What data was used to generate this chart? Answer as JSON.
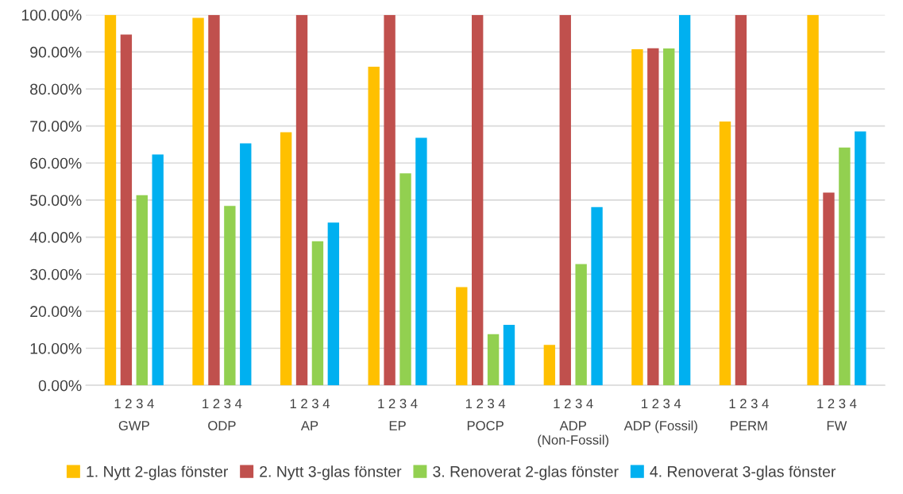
{
  "chart_data": {
    "type": "bar",
    "categories": [
      "GWP",
      "ODP",
      "AP",
      "EP",
      "POCP",
      "ADP (Non-Fossil)",
      "ADP (Fossil)",
      "PERM",
      "FW"
    ],
    "series": [
      {
        "name": "1. Nytt 2-glas fönster",
        "color": "#ffc000",
        "values": [
          100,
          99.2,
          68.3,
          86.0,
          26.5,
          10.9,
          90.7,
          71.2,
          100
        ]
      },
      {
        "name": "2. Nytt 3-glas fönster",
        "color": "#c0504d",
        "values": [
          94.7,
          100,
          100,
          100,
          100,
          100,
          91.0,
          100,
          52.0
        ]
      },
      {
        "name": "3. Renoverat 2-glas fönster",
        "color": "#92d050",
        "values": [
          51.3,
          48.4,
          38.9,
          57.2,
          13.8,
          32.7,
          90.9,
          null,
          64.2
        ]
      },
      {
        "name": "4. Renoverat 3-glas fönster",
        "color": "#00b0f0",
        "values": [
          62.3,
          65.3,
          43.9,
          66.8,
          16.3,
          48.1,
          100,
          null,
          68.5
        ]
      }
    ],
    "annotations": [
      "1 2 3 4",
      "1 2 3 4",
      "1 2 3 4",
      "1 2 3 4",
      "1 2 3 4",
      "1 2 3 4",
      "1 2 3 4",
      "1 2 3 4",
      "1 2 3 4"
    ],
    "ylim": [
      0,
      100
    ],
    "yticks": [
      {
        "value": 0,
        "label": "0.00%"
      },
      {
        "value": 10,
        "label": "10.00%"
      },
      {
        "value": 20,
        "label": "20.00%"
      },
      {
        "value": 30,
        "label": "30.00%"
      },
      {
        "value": 40,
        "label": "40.00%"
      },
      {
        "value": 50,
        "label": "50.00%"
      },
      {
        "value": 60,
        "label": "60.00%"
      },
      {
        "value": 70,
        "label": "70.00%"
      },
      {
        "value": 80,
        "label": "80.00%"
      },
      {
        "value": 90,
        "label": "90.00%"
      },
      {
        "value": 100,
        "label": "100.00%"
      }
    ],
    "grid": "y",
    "legend": "bottom"
  }
}
